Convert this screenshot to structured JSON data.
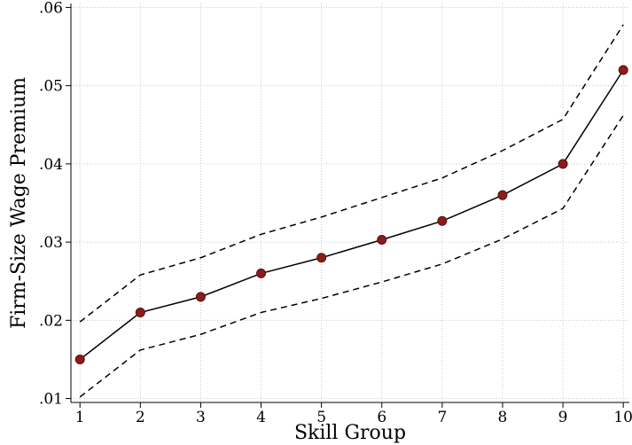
{
  "chart_data": {
    "type": "line",
    "xlabel": "Skill Group",
    "ylabel": "Firm-Size Wage Premium",
    "x": [
      1,
      2,
      3,
      4,
      5,
      6,
      7,
      8,
      9,
      10
    ],
    "x_tick_labels": [
      "1",
      "2",
      "3",
      "4",
      "5",
      "6",
      "7",
      "8",
      "9",
      "10"
    ],
    "y_ticks": [
      0.01,
      0.02,
      0.03,
      0.04,
      0.05,
      0.06
    ],
    "y_tick_labels": [
      ".01",
      ".02",
      ".03",
      ".04",
      ".05",
      ".06"
    ],
    "xlim": [
      0.85,
      10.1
    ],
    "ylim": [
      0.0095,
      0.0605
    ],
    "grid": true,
    "series": [
      {
        "role": "estimate",
        "style": "solid",
        "markers": true,
        "values": [
          0.015,
          0.021,
          0.023,
          0.026,
          0.028,
          0.0303,
          0.0327,
          0.036,
          0.04,
          0.052
        ]
      },
      {
        "role": "upper-bound",
        "style": "dashed",
        "markers": false,
        "values": [
          0.0198,
          0.0258,
          0.028,
          0.031,
          0.0332,
          0.0357,
          0.0382,
          0.0417,
          0.0457,
          0.0578
        ]
      },
      {
        "role": "lower-bound",
        "style": "dashed",
        "markers": false,
        "values": [
          0.0102,
          0.0162,
          0.0182,
          0.021,
          0.0228,
          0.0249,
          0.0272,
          0.0304,
          0.0343,
          0.0462
        ]
      }
    ],
    "colors": {
      "marker": "#8b1c1c",
      "line": "#000000",
      "grid": "#c8c8c8"
    }
  }
}
